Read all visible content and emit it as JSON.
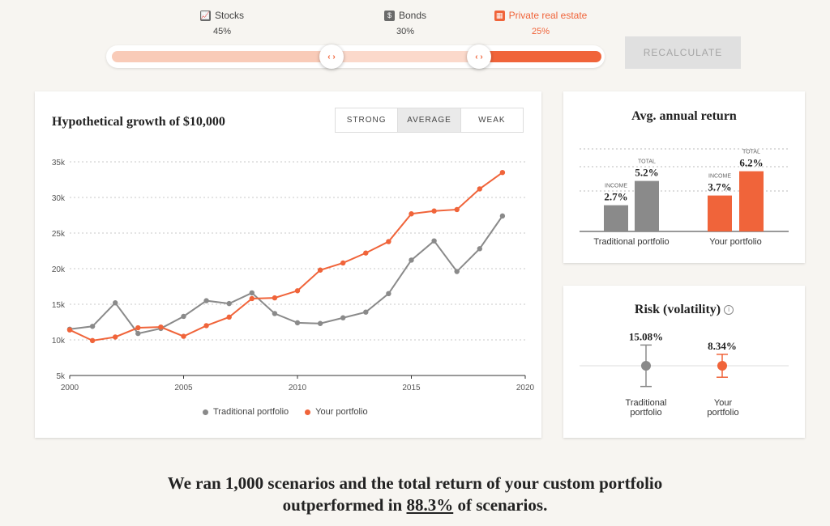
{
  "allocation": [
    {
      "name": "Stocks",
      "pct": "45%",
      "icon": "stock-chart-icon"
    },
    {
      "name": "Bonds",
      "pct": "30%",
      "icon": "dollar-icon"
    },
    {
      "name": "Private real estate",
      "pct": "25%",
      "icon": "building-icon"
    }
  ],
  "slider": {
    "handle_glyph": "‹ ›"
  },
  "recalculate_label": "RECALCULATE",
  "growth_card": {
    "title": "Hypothetical growth of $10,000",
    "scenarios": [
      "STRONG",
      "AVERAGE",
      "WEAK"
    ],
    "active_scenario": "AVERAGE",
    "legend": [
      "Traditional portfolio",
      "Your portfolio"
    ]
  },
  "chart_data": [
    {
      "type": "line",
      "title": "Hypothetical growth of $10,000",
      "x": [
        2000,
        2001,
        2002,
        2003,
        2004,
        2005,
        2006,
        2007,
        2008,
        2009,
        2010,
        2011,
        2012,
        2013,
        2014,
        2015,
        2016,
        2017,
        2018,
        2019
      ],
      "xticks": [
        "2000",
        "2005",
        "2010",
        "2015",
        "2020"
      ],
      "yticks": [
        "5k",
        "10k",
        "15k",
        "20k",
        "25k",
        "30k",
        "35k"
      ],
      "xlim": [
        2000,
        2020
      ],
      "ylim": [
        5000,
        35000
      ],
      "grid": true,
      "series": [
        {
          "name": "Traditional portfolio",
          "color": "#8a8a8a",
          "values": [
            11500,
            11900,
            15200,
            10900,
            11600,
            13300,
            15500,
            15100,
            16600,
            13700,
            12400,
            12300,
            13100,
            13900,
            16500,
            21200,
            23900,
            19600,
            22800,
            27400
          ]
        },
        {
          "name": "Your portfolio",
          "color": "#f0643a",
          "values": [
            11400,
            9900,
            10400,
            11700,
            11800,
            10500,
            12000,
            13200,
            15800,
            15900,
            16900,
            19800,
            20800,
            22200,
            23800,
            27700,
            28100,
            28300,
            31200,
            33500
          ]
        }
      ]
    },
    {
      "type": "bar",
      "title": "Avg. annual return",
      "categories": [
        "Traditional portfolio",
        "Your portfolio"
      ],
      "series": [
        {
          "name": "INCOME",
          "values": [
            2.7,
            3.7
          ]
        },
        {
          "name": "TOTAL",
          "values": [
            5.2,
            6.2
          ]
        }
      ],
      "value_labels": [
        [
          "2.7%",
          "5.2%"
        ],
        [
          "3.7%",
          "6.2%"
        ]
      ],
      "ylim": [
        0,
        8
      ]
    },
    {
      "type": "scatter",
      "title": "Risk (volatility)",
      "categories": [
        "Traditional portfolio",
        "Your portfolio"
      ],
      "values": [
        15.08,
        8.34
      ],
      "value_labels": [
        "15.08%",
        "8.34%"
      ],
      "colors": [
        "#8a8a8a",
        "#f0643a"
      ]
    }
  ],
  "returns_card": {
    "title": "Avg. annual return",
    "income_label": "INCOME",
    "total_label": "TOTAL",
    "categories": [
      "Traditional portfolio",
      "Your portfolio"
    ]
  },
  "risk_card": {
    "title": "Risk (volatility)",
    "info_glyph": "i",
    "categories": [
      "Traditional\nportfolio",
      "Your\nportfolio"
    ],
    "values": [
      "15.08%",
      "8.34%"
    ]
  },
  "headline": {
    "line1": "We ran 1,000 scenarios and the total return of your custom portfolio",
    "pre": "outperformed in ",
    "pct": "88.3%",
    "post": " of scenarios."
  },
  "colors": {
    "accent": "#f0643a",
    "accent_light": "#f9cbb8",
    "gray": "#8a8a8a",
    "bg": "#f7f5f1"
  }
}
